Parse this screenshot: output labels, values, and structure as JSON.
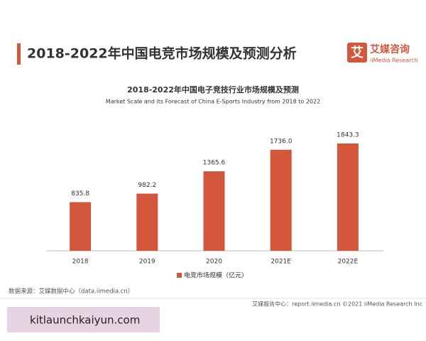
{
  "header": {
    "title": "2018-2022年中国电竞市场规模及预测分析",
    "logo_mark": "艾",
    "logo_name": "艾媒咨询",
    "logo_sub": "iiMedia Research"
  },
  "chart_data": {
    "type": "bar",
    "title": "2018-2022年中国电子竞技行业市场规模及预测",
    "subtitle": "Market Scale and its Forecast of China E-Sports Industry from 2018 to 2022",
    "categories": [
      "2018",
      "2019",
      "2020",
      "2021E",
      "2022E"
    ],
    "series": [
      {
        "name": "电竞市场规模（亿元）",
        "color": "#d4573b",
        "values": [
          835.8,
          982.2,
          1365.6,
          1736.0,
          1843.3
        ],
        "value_labels": [
          "835.8",
          "982.2",
          "1365.6",
          "1736.0",
          "1843.3"
        ]
      }
    ]
  },
  "footer": {
    "source": "数据来源：艾媒数据中心（data.iimedia.cn）",
    "credit": "艾媒报告中心：report.iimedia.cn   ©2021  iiMedia Research  Inc",
    "watermark": "kitlaunchkaiyun.com"
  }
}
